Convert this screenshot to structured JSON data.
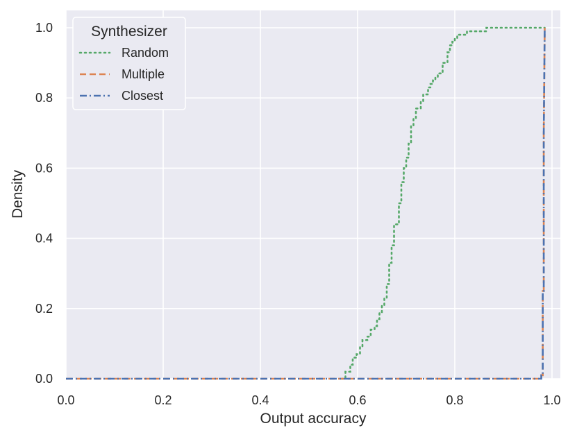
{
  "chart_data": {
    "type": "line",
    "xlabel": "Output accuracy",
    "ylabel": "Density",
    "xlim": [
      0.0,
      1.0
    ],
    "ylim": [
      0.0,
      1.0
    ],
    "xticks": [
      "0.0",
      "0.2",
      "0.4",
      "0.6",
      "0.8",
      "1.0"
    ],
    "yticks": [
      "0.0",
      "0.2",
      "0.4",
      "0.6",
      "0.8",
      "1.0"
    ],
    "grid": true,
    "legend": {
      "title": "Synthesizer",
      "position": "top-left"
    },
    "series": [
      {
        "name": "Random",
        "color": "#55a868",
        "style": "dotted",
        "x": [
          0.567,
          0.575,
          0.575,
          0.585,
          0.585,
          0.59,
          0.59,
          0.598,
          0.598,
          0.605,
          0.605,
          0.61,
          0.61,
          0.62,
          0.62,
          0.627,
          0.627,
          0.635,
          0.635,
          0.64,
          0.64,
          0.645,
          0.645,
          0.65,
          0.65,
          0.655,
          0.655,
          0.66,
          0.66,
          0.665,
          0.665,
          0.67,
          0.67,
          0.675,
          0.675,
          0.685,
          0.685,
          0.69,
          0.69,
          0.695,
          0.695,
          0.7,
          0.7,
          0.705,
          0.705,
          0.71,
          0.71,
          0.715,
          0.715,
          0.72,
          0.72,
          0.73,
          0.73,
          0.735,
          0.735,
          0.745,
          0.745,
          0.75,
          0.75,
          0.755,
          0.755,
          0.76,
          0.76,
          0.765,
          0.765,
          0.775,
          0.775,
          0.785,
          0.785,
          0.79,
          0.79,
          0.795,
          0.795,
          0.8,
          0.8,
          0.805,
          0.805,
          0.815,
          0.815,
          0.82,
          0.82,
          0.825,
          0.825,
          0.865,
          0.865,
          0.87,
          0.87,
          0.985
        ],
        "y": [
          0.0,
          0.0,
          0.02,
          0.02,
          0.04,
          0.04,
          0.06,
          0.06,
          0.07,
          0.07,
          0.09,
          0.09,
          0.11,
          0.11,
          0.12,
          0.12,
          0.14,
          0.14,
          0.15,
          0.15,
          0.17,
          0.17,
          0.19,
          0.19,
          0.21,
          0.21,
          0.23,
          0.23,
          0.27,
          0.27,
          0.33,
          0.33,
          0.38,
          0.38,
          0.44,
          0.44,
          0.5,
          0.5,
          0.56,
          0.56,
          0.6,
          0.6,
          0.63,
          0.63,
          0.67,
          0.67,
          0.72,
          0.72,
          0.74,
          0.74,
          0.77,
          0.77,
          0.79,
          0.79,
          0.81,
          0.81,
          0.83,
          0.83,
          0.84,
          0.84,
          0.85,
          0.85,
          0.86,
          0.86,
          0.87,
          0.87,
          0.9,
          0.9,
          0.93,
          0.93,
          0.95,
          0.95,
          0.96,
          0.96,
          0.97,
          0.97,
          0.98,
          0.98,
          0.98,
          0.98,
          0.98,
          0.98,
          0.99,
          0.99,
          1.0,
          1.0,
          1.0,
          1.0
        ]
      },
      {
        "name": "Multiple",
        "color": "#dd8452",
        "style": "dashed",
        "x": [
          0.0,
          0.978,
          0.978,
          0.981,
          0.981,
          0.983,
          0.983,
          0.985
        ],
        "y": [
          0.0,
          0.0,
          0.01,
          0.01,
          0.25,
          0.25,
          0.7,
          1.0
        ]
      },
      {
        "name": "Closest",
        "color": "#4c72b0",
        "style": "dashdot",
        "x": [
          0.0,
          0.978,
          0.978,
          0.981,
          0.981,
          0.983,
          0.983,
          0.985
        ],
        "y": [
          0.0,
          0.0,
          0.01,
          0.01,
          0.25,
          0.25,
          0.7,
          1.0
        ]
      }
    ]
  }
}
